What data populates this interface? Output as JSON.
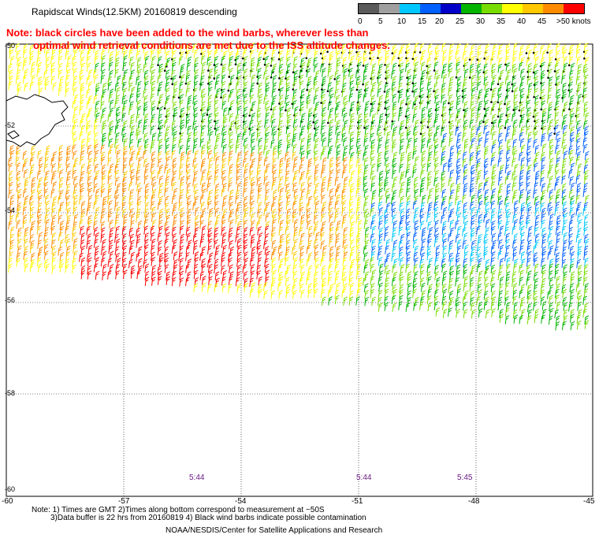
{
  "title": "Rapidscat Winds(12.5KM) 20160819 descending",
  "note": {
    "line1": "Note: black circles have been added to the wind barbs, wherever less than",
    "line2": "optimal wind retrieval conditions are met due to the ISS altitude changes."
  },
  "legend": {
    "colors": [
      "#5a5a5a",
      "#a0a0a0",
      "#00c8ff",
      "#0060ff",
      "#0000c8",
      "#00b400",
      "#78dc00",
      "#ffff00",
      "#ffc800",
      "#ff8c00",
      "#ff0000",
      "#c80000",
      "#8b4513",
      "#a06040",
      "#ff00ff",
      "#a000c8",
      "#500080"
    ],
    "labels": [
      "0",
      "5",
      "10",
      "15",
      "20",
      "25",
      "30",
      "35",
      "40",
      "45",
      ">50 knots"
    ]
  },
  "axes": {
    "lon_labels": [
      "-60",
      "-57",
      "-54",
      "-51",
      "-48",
      "-45"
    ],
    "lat_labels": [
      "-50",
      "-52",
      "-54",
      "-56",
      "-58",
      "-60"
    ]
  },
  "times": [
    "5:44",
    "5:44",
    "5:45"
  ],
  "footer": {
    "line1": "Note: 1) Times are GMT 2)Times along bottom correspond to measurement at ~50S",
    "line2": "3)Data buffer is 22 hrs from 20160819 4) Black wind barbs indicate possible contamination",
    "line3": "NOAA/NESDIS/Center for Satellite Applications and Research"
  }
}
